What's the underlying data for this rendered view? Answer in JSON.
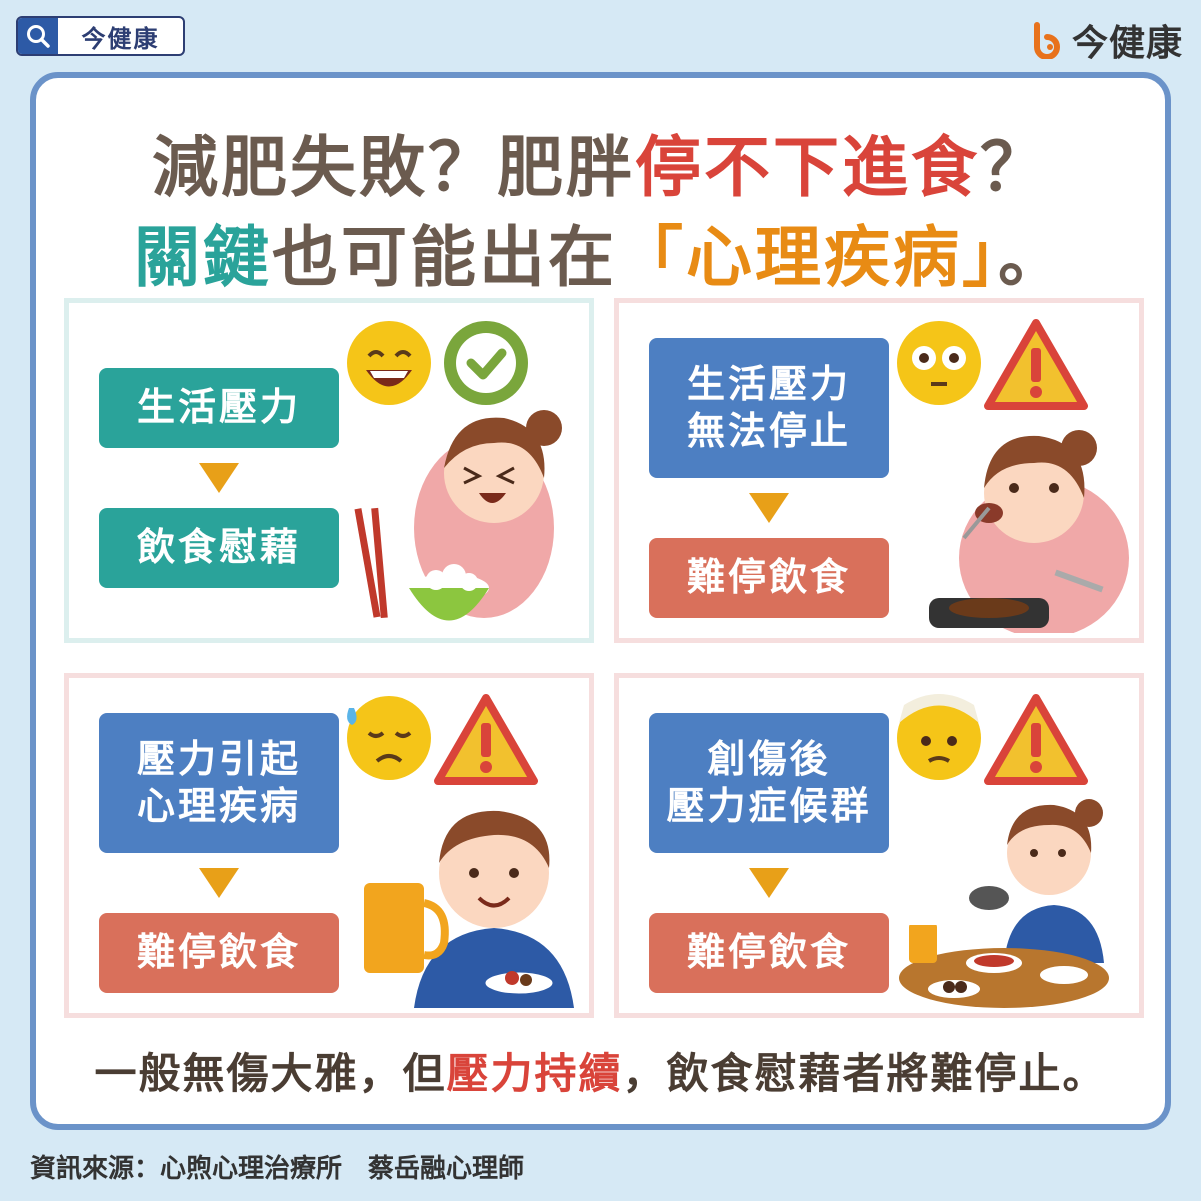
{
  "header": {
    "search_label": "今健康",
    "brand_name": "今健康",
    "brand_color": "#e8721c"
  },
  "title": {
    "line1_a": "減肥失敗？肥胖",
    "line1_b": "停不下進食",
    "line1_c": "？",
    "line2_a": "關鍵",
    "line2_b": "也可能出在",
    "line2_c": "「心理疾病」",
    "line2_d": "。"
  },
  "panels": [
    {
      "top": "生活壓力",
      "bottom": "飲食慰藉",
      "emoji": "grinning-face",
      "badge": "check-icon"
    },
    {
      "top_line1": "生活壓力",
      "top_line2": "無法停止",
      "bottom": "難停飲食",
      "emoji": "flushed-face",
      "badge": "warning-icon"
    },
    {
      "top_line1": "壓力引起",
      "top_line2": "心理疾病",
      "bottom": "難停飲食",
      "emoji": "sad-sweat-face",
      "badge": "warning-icon"
    },
    {
      "top_line1": "創傷後",
      "top_line2": "壓力症候群",
      "bottom": "難停飲食",
      "emoji": "bandaged-face",
      "badge": "warning-icon"
    }
  ],
  "bottom": {
    "a": "一般無傷大雅，但",
    "b": "壓力持續",
    "c": "，飲食慰藉者將難停止。"
  },
  "source": "資訊來源：心煦心理治療所　蔡岳融心理師"
}
